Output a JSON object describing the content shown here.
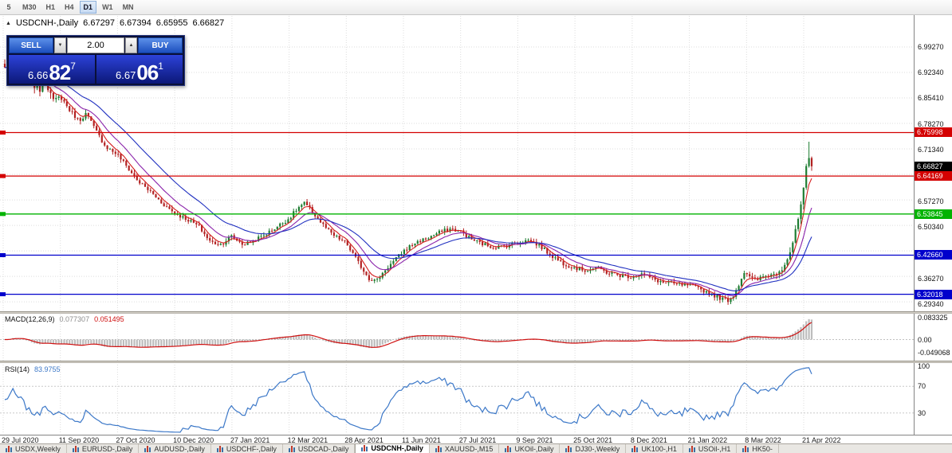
{
  "window_title": "USDCNH-,Daily",
  "toolbar": {
    "timeframes": [
      {
        "label": "5",
        "active": false
      },
      {
        "label": "M30",
        "active": false
      },
      {
        "label": "H1",
        "active": false
      },
      {
        "label": "H4",
        "active": false
      },
      {
        "label": "D1",
        "active": true
      },
      {
        "label": "W1",
        "active": false
      },
      {
        "label": "MN",
        "active": false
      }
    ]
  },
  "chart_header": {
    "collapse_icon": "▲",
    "symbol": "USDCNH-,Daily",
    "open": "6.67297",
    "high": "6.67394",
    "low": "6.65955",
    "close": "6.66827"
  },
  "trade_panel": {
    "sell_label": "SELL",
    "buy_label": "BUY",
    "volume": "2.00",
    "volume_down_icon": "▼",
    "volume_up_icon": "▲",
    "sell_price": {
      "big": "6.66",
      "pips": "82",
      "sup": "7"
    },
    "buy_price": {
      "big": "6.67",
      "pips": "06",
      "sup": "1"
    }
  },
  "price_scale": {
    "plain_labels": [
      {
        "text": "6.99270",
        "value": 6.9927
      },
      {
        "text": "6.92340",
        "value": 6.9234
      },
      {
        "text": "6.85410",
        "value": 6.8541
      },
      {
        "text": "6.78270",
        "value": 6.7827
      },
      {
        "text": "6.71340",
        "value": 6.7134
      },
      {
        "text": "6.57270",
        "value": 6.5727
      },
      {
        "text": "6.50340",
        "value": 6.5034
      },
      {
        "text": "6.36270",
        "value": 6.3627
      },
      {
        "text": "6.29340",
        "value": 6.2934
      }
    ],
    "level_labels": [
      {
        "text": "6.75998",
        "value": 6.75998,
        "color": "#d40000"
      },
      {
        "text": "6.64169",
        "value": 6.64169,
        "color": "#d40000"
      },
      {
        "text": "6.53845",
        "value": 6.53845,
        "color": "#00b300"
      },
      {
        "text": "6.42660",
        "value": 6.4266,
        "color": "#0000cc"
      },
      {
        "text": "6.32018",
        "value": 6.32018,
        "color": "#0000cc"
      }
    ],
    "current_price": {
      "text": "6.66827",
      "value": 6.66827,
      "bg": "#000000"
    }
  },
  "indicators": {
    "macd": {
      "label": "MACD(12,26,9)",
      "value_main": "0.077307",
      "value_signal": "0.051495",
      "histogram_color": "#bdbdbd",
      "signal_color": "#d01010",
      "scale_labels": [
        {
          "text": "0.083325",
          "value": 0.083325
        },
        {
          "text": "0.00",
          "value": 0
        },
        {
          "text": "-0.049068",
          "value": -0.049068
        }
      ]
    },
    "rsi": {
      "label": "RSI(14)",
      "value": "83.9755",
      "line_color": "#3c78c8",
      "levels": [
        70,
        30
      ],
      "scale_labels": [
        {
          "text": "100",
          "value": 100
        },
        {
          "text": "70",
          "value": 70
        },
        {
          "text": "30",
          "value": 30
        }
      ]
    }
  },
  "tabs": {
    "active_index": 5,
    "items": [
      {
        "label": "USDX,Weekly"
      },
      {
        "label": "EURUSD-,Daily"
      },
      {
        "label": "AUDUSD-,Daily"
      },
      {
        "label": "USDCHF-,Daily"
      },
      {
        "label": "USDCAD-,Daily"
      },
      {
        "label": "USDCNH-,Daily"
      },
      {
        "label": "XAUUSD-,M15"
      },
      {
        "label": "UKOil-,Daily"
      },
      {
        "label": "DJ30-,Weekly"
      },
      {
        "label": "UK100-,H1"
      },
      {
        "label": "USOil-,H1"
      },
      {
        "label": "HK50-"
      }
    ]
  },
  "chart_data": {
    "type": "candlestick",
    "title": "USDCNH-,Daily",
    "last_bar": {
      "open": 6.67297,
      "high": 6.67394,
      "low": 6.65955,
      "close": 6.66827
    },
    "y_axis": {
      "min": 6.2717,
      "max": 7.0165,
      "tick_step": 0.0693
    },
    "x_tick_labels": [
      "29 Jul 2020",
      "11 Sep 2020",
      "27 Oct 2020",
      "10 Dec 2020",
      "27 Jan 2021",
      "12 Mar 2021",
      "28 Apr 2021",
      "11 Jun 2021",
      "27 Jul 2021",
      "9 Sep 2021",
      "25 Oct 2021",
      "8 Dec 2021",
      "21 Jan 2022",
      "8 Mar 2022",
      "21 Apr 2022"
    ],
    "candle_up_color": "#1e7d32",
    "candle_down_color": "#b22222",
    "moving_averages": [
      {
        "period": 5,
        "color": "#d42020"
      },
      {
        "period": 12,
        "color": "#8a22aa"
      },
      {
        "period": 26,
        "color": "#2030c0"
      }
    ],
    "horizontal_levels": [
      {
        "value": 6.75998,
        "color": "#d40000"
      },
      {
        "value": 6.64169,
        "color": "#d40000"
      },
      {
        "value": 6.53845,
        "color": "#00b300"
      },
      {
        "value": 6.4266,
        "color": "#0000cc"
      },
      {
        "value": 6.32018,
        "color": "#0000cc"
      }
    ],
    "close_path_anchors": [
      [
        0.0,
        6.935
      ],
      [
        0.01,
        6.958
      ],
      [
        0.022,
        6.94
      ],
      [
        0.032,
        6.9
      ],
      [
        0.042,
        6.874
      ],
      [
        0.05,
        6.904
      ],
      [
        0.06,
        6.846
      ],
      [
        0.069,
        6.858
      ],
      [
        0.08,
        6.822
      ],
      [
        0.092,
        6.792
      ],
      [
        0.101,
        6.812
      ],
      [
        0.112,
        6.768
      ],
      [
        0.125,
        6.722
      ],
      [
        0.14,
        6.7
      ],
      [
        0.152,
        6.665
      ],
      [
        0.165,
        6.628
      ],
      [
        0.18,
        6.6
      ],
      [
        0.196,
        6.566
      ],
      [
        0.211,
        6.54
      ],
      [
        0.226,
        6.524
      ],
      [
        0.24,
        6.506
      ],
      [
        0.255,
        6.462
      ],
      [
        0.268,
        6.456
      ],
      [
        0.281,
        6.478
      ],
      [
        0.296,
        6.455
      ],
      [
        0.31,
        6.468
      ],
      [
        0.324,
        6.484
      ],
      [
        0.34,
        6.508
      ],
      [
        0.352,
        6.526
      ],
      [
        0.363,
        6.554
      ],
      [
        0.371,
        6.568
      ],
      [
        0.381,
        6.545
      ],
      [
        0.393,
        6.512
      ],
      [
        0.406,
        6.482
      ],
      [
        0.423,
        6.46
      ],
      [
        0.433,
        6.424
      ],
      [
        0.443,
        6.39
      ],
      [
        0.452,
        6.362
      ],
      [
        0.461,
        6.357
      ],
      [
        0.471,
        6.386
      ],
      [
        0.483,
        6.412
      ],
      [
        0.494,
        6.438
      ],
      [
        0.508,
        6.46
      ],
      [
        0.523,
        6.472
      ],
      [
        0.538,
        6.488
      ],
      [
        0.552,
        6.498
      ],
      [
        0.565,
        6.491
      ],
      [
        0.578,
        6.47
      ],
      [
        0.591,
        6.458
      ],
      [
        0.606,
        6.448
      ],
      [
        0.621,
        6.452
      ],
      [
        0.636,
        6.461
      ],
      [
        0.65,
        6.468
      ],
      [
        0.663,
        6.452
      ],
      [
        0.676,
        6.428
      ],
      [
        0.691,
        6.405
      ],
      [
        0.707,
        6.392
      ],
      [
        0.72,
        6.385
      ],
      [
        0.733,
        6.393
      ],
      [
        0.746,
        6.38
      ],
      [
        0.761,
        6.372
      ],
      [
        0.777,
        6.368
      ],
      [
        0.79,
        6.376
      ],
      [
        0.803,
        6.362
      ],
      [
        0.816,
        6.352
      ],
      [
        0.831,
        6.348
      ],
      [
        0.848,
        6.344
      ],
      [
        0.862,
        6.334
      ],
      [
        0.876,
        6.32
      ],
      [
        0.889,
        6.308
      ],
      [
        0.897,
        6.304
      ],
      [
        0.904,
        6.32
      ],
      [
        0.911,
        6.354
      ],
      [
        0.917,
        6.384
      ],
      [
        0.923,
        6.366
      ],
      [
        0.931,
        6.358
      ],
      [
        0.939,
        6.368
      ],
      [
        0.947,
        6.372
      ],
      [
        0.955,
        6.376
      ],
      [
        0.963,
        6.392
      ],
      [
        0.971,
        6.422
      ],
      [
        0.978,
        6.47
      ],
      [
        0.984,
        6.532
      ],
      [
        0.99,
        6.604
      ],
      [
        0.995,
        6.692
      ],
      [
        1.0,
        6.668
      ]
    ],
    "indicator_panels": [
      {
        "type": "macd",
        "params": [
          12,
          26,
          9
        ],
        "current": [
          0.077307,
          0.051495
        ],
        "scale": [
          -0.049068,
          0,
          0.083325
        ]
      },
      {
        "type": "rsi",
        "params": [
          14
        ],
        "current": 83.9755,
        "scale": [
          30,
          70,
          100
        ]
      }
    ]
  }
}
